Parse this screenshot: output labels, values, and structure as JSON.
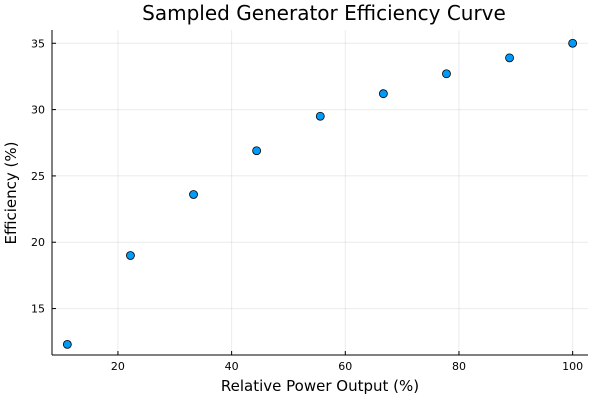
{
  "chart_data": {
    "type": "scatter",
    "title": "Sampled Generator Efficiency Curve",
    "xlabel": "Relative Power Output (%)",
    "ylabel": "Efficiency (%)",
    "xlim": [
      8.4,
      102.7
    ],
    "ylim": [
      11.5,
      36.0
    ],
    "xticks": [
      20,
      40,
      60,
      80,
      100
    ],
    "yticks": [
      15,
      20,
      25,
      30,
      35
    ],
    "grid": true,
    "legend": "none",
    "marker_color": "#009af9",
    "series": [
      {
        "x": [
          11.1,
          22.2,
          33.3,
          44.4,
          55.6,
          66.7,
          77.8,
          88.9,
          100.0
        ],
        "y": [
          12.3,
          19.0,
          23.6,
          26.9,
          29.5,
          31.2,
          32.7,
          33.9,
          35.0
        ]
      }
    ]
  }
}
